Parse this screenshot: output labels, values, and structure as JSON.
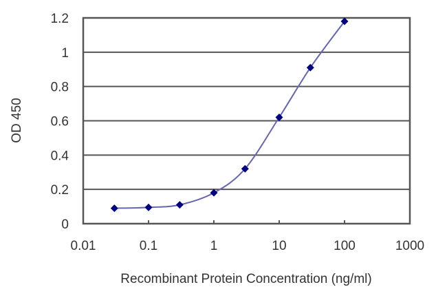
{
  "chart_data": {
    "type": "line",
    "title": "",
    "xlabel": "Recombinant Protein Concentration (ng/ml)",
    "ylabel": "OD 450",
    "x_scale": "log",
    "xlim": [
      0.01,
      1000
    ],
    "ylim": [
      0,
      1.2
    ],
    "x_ticks": [
      0.01,
      0.1,
      1,
      10,
      100,
      1000
    ],
    "x_tick_labels": [
      "0.01",
      "0.1",
      "1",
      "10",
      "100",
      "1000"
    ],
    "y_ticks": [
      0,
      0.2,
      0.4,
      0.6,
      0.8,
      1,
      1.2
    ],
    "y_tick_labels": [
      "0",
      "0.2",
      "0.4",
      "0.6",
      "0.8",
      "1",
      "1.2"
    ],
    "grid": "horizontal",
    "legend": null,
    "series": [
      {
        "name": "OD 450",
        "color": "#00007f",
        "marker": "diamond",
        "smooth": true,
        "x": [
          0.03,
          0.1,
          0.3,
          1,
          3,
          10,
          30,
          100
        ],
        "values": [
          0.09,
          0.095,
          0.11,
          0.18,
          0.32,
          0.62,
          0.91,
          1.18
        ]
      }
    ]
  },
  "colors": {
    "background": "#ffffff",
    "frame": "#555555",
    "grid": "#555555",
    "line": "#6666aa",
    "marker": "#00007f",
    "text": "#333333"
  }
}
